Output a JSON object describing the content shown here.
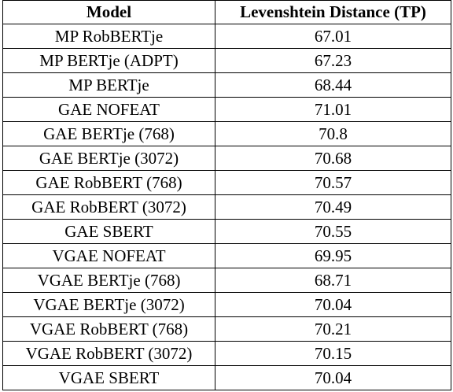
{
  "table": {
    "headers": {
      "model": "Model",
      "distance": "Levenshtein Distance (TP)"
    },
    "rows": [
      {
        "model": "MP RobBERTje",
        "distance": "67.01"
      },
      {
        "model": "MP BERTje (ADPT)",
        "distance": "67.23"
      },
      {
        "model": "MP BERTje",
        "distance": "68.44"
      },
      {
        "model": "GAE NOFEAT",
        "distance": "71.01"
      },
      {
        "model": "GAE BERTje (768)",
        "distance": "70.8"
      },
      {
        "model": "GAE BERTje (3072)",
        "distance": "70.68"
      },
      {
        "model": "GAE RobBERT (768)",
        "distance": "70.57"
      },
      {
        "model": "GAE RobBERT (3072)",
        "distance": "70.49"
      },
      {
        "model": "GAE SBERT",
        "distance": "70.55"
      },
      {
        "model": "VGAE NOFEAT",
        "distance": "69.95"
      },
      {
        "model": "VGAE BERTje (768)",
        "distance": "68.71"
      },
      {
        "model": "VGAE BERTje (3072)",
        "distance": "70.04"
      },
      {
        "model": "VGAE RobBERT (768)",
        "distance": "70.21"
      },
      {
        "model": "VGAE RobBERT (3072)",
        "distance": "70.15"
      },
      {
        "model": "VGAE SBERT",
        "distance": "70.04"
      }
    ]
  }
}
